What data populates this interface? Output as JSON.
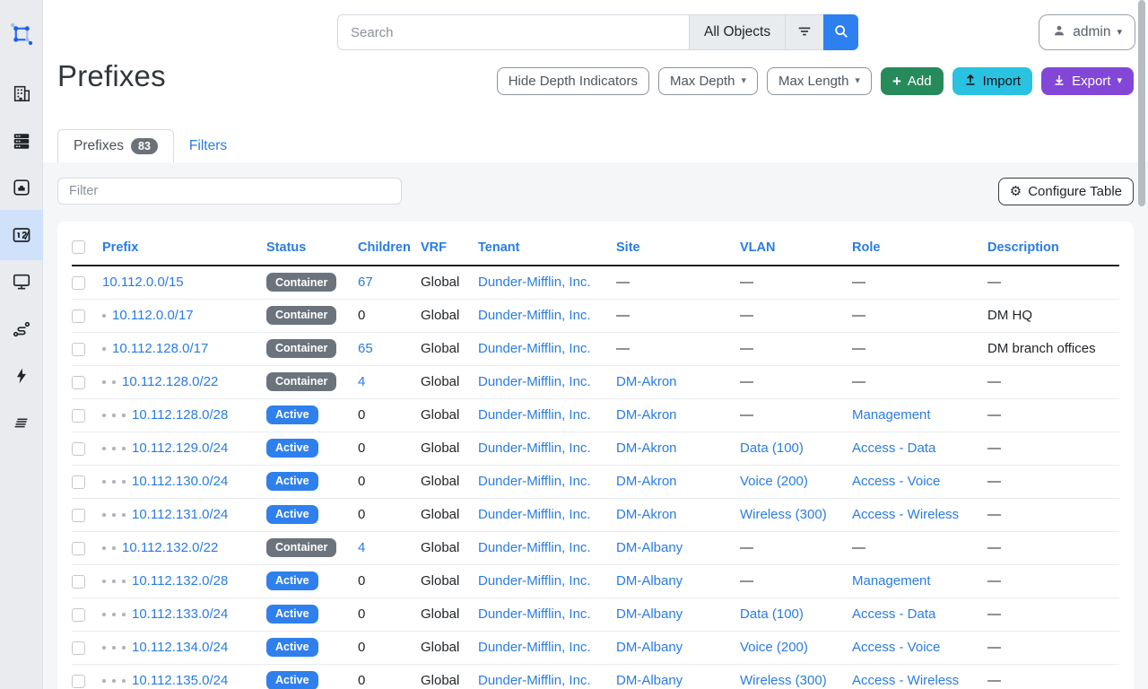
{
  "topbar": {
    "search_placeholder": "Search",
    "scope_label": "All Objects",
    "user_label": "admin"
  },
  "sidebar": {
    "items": [
      {
        "name": "netbox-logo"
      },
      {
        "name": "organization"
      },
      {
        "name": "devices"
      },
      {
        "name": "connections"
      },
      {
        "name": "ipam",
        "active": true
      },
      {
        "name": "virtualization"
      },
      {
        "name": "circuits"
      },
      {
        "name": "power"
      },
      {
        "name": "provider-networks"
      }
    ]
  },
  "page": {
    "title": "Prefixes",
    "actions": {
      "hide_depth": "Hide Depth Indicators",
      "max_depth": "Max Depth",
      "max_length": "Max Length",
      "add": "Add",
      "import": "Import",
      "export": "Export"
    },
    "tabs": [
      {
        "label": "Prefixes",
        "badge": "83"
      },
      {
        "label": "Filters"
      }
    ]
  },
  "panel": {
    "filter_placeholder": "Filter",
    "configure_label": "Configure Table"
  },
  "table": {
    "columns": [
      "Prefix",
      "Status",
      "Children",
      "VRF",
      "Tenant",
      "Site",
      "VLAN",
      "Role",
      "Description"
    ],
    "rows": [
      {
        "prefix": "10.112.0.0/15",
        "depth": 0,
        "status": "Container",
        "status_kind": "container",
        "children": "67",
        "children_link": true,
        "vrf": "Global",
        "tenant": "Dunder-Mifflin, Inc.",
        "site": "—",
        "vlan": "—",
        "role": "—",
        "description": "—"
      },
      {
        "prefix": "10.112.0.0/17",
        "depth": 1,
        "status": "Container",
        "status_kind": "container",
        "children": "0",
        "children_link": false,
        "vrf": "Global",
        "tenant": "Dunder-Mifflin, Inc.",
        "site": "—",
        "vlan": "—",
        "role": "—",
        "description": "DM HQ"
      },
      {
        "prefix": "10.112.128.0/17",
        "depth": 1,
        "status": "Container",
        "status_kind": "container",
        "children": "65",
        "children_link": true,
        "vrf": "Global",
        "tenant": "Dunder-Mifflin, Inc.",
        "site": "—",
        "vlan": "—",
        "role": "—",
        "description": "DM branch offices"
      },
      {
        "prefix": "10.112.128.0/22",
        "depth": 2,
        "status": "Container",
        "status_kind": "container",
        "children": "4",
        "children_link": true,
        "vrf": "Global",
        "tenant": "Dunder-Mifflin, Inc.",
        "site": "DM-Akron",
        "vlan": "—",
        "role": "—",
        "description": "—"
      },
      {
        "prefix": "10.112.128.0/28",
        "depth": 3,
        "status": "Active",
        "status_kind": "active",
        "children": "0",
        "children_link": false,
        "vrf": "Global",
        "tenant": "Dunder-Mifflin, Inc.",
        "site": "DM-Akron",
        "vlan": "—",
        "role": "Management",
        "description": "—"
      },
      {
        "prefix": "10.112.129.0/24",
        "depth": 3,
        "status": "Active",
        "status_kind": "active",
        "children": "0",
        "children_link": false,
        "vrf": "Global",
        "tenant": "Dunder-Mifflin, Inc.",
        "site": "DM-Akron",
        "vlan": "Data (100)",
        "role": "Access - Data",
        "description": "—"
      },
      {
        "prefix": "10.112.130.0/24",
        "depth": 3,
        "status": "Active",
        "status_kind": "active",
        "children": "0",
        "children_link": false,
        "vrf": "Global",
        "tenant": "Dunder-Mifflin, Inc.",
        "site": "DM-Akron",
        "vlan": "Voice (200)",
        "role": "Access - Voice",
        "description": "—"
      },
      {
        "prefix": "10.112.131.0/24",
        "depth": 3,
        "status": "Active",
        "status_kind": "active",
        "children": "0",
        "children_link": false,
        "vrf": "Global",
        "tenant": "Dunder-Mifflin, Inc.",
        "site": "DM-Akron",
        "vlan": "Wireless (300)",
        "role": "Access - Wireless",
        "description": "—"
      },
      {
        "prefix": "10.112.132.0/22",
        "depth": 2,
        "status": "Container",
        "status_kind": "container",
        "children": "4",
        "children_link": true,
        "vrf": "Global",
        "tenant": "Dunder-Mifflin, Inc.",
        "site": "DM-Albany",
        "vlan": "—",
        "role": "—",
        "description": "—"
      },
      {
        "prefix": "10.112.132.0/28",
        "depth": 3,
        "status": "Active",
        "status_kind": "active",
        "children": "0",
        "children_link": false,
        "vrf": "Global",
        "tenant": "Dunder-Mifflin, Inc.",
        "site": "DM-Albany",
        "vlan": "—",
        "role": "Management",
        "description": "—"
      },
      {
        "prefix": "10.112.133.0/24",
        "depth": 3,
        "status": "Active",
        "status_kind": "active",
        "children": "0",
        "children_link": false,
        "vrf": "Global",
        "tenant": "Dunder-Mifflin, Inc.",
        "site": "DM-Albany",
        "vlan": "Data (100)",
        "role": "Access - Data",
        "description": "—"
      },
      {
        "prefix": "10.112.134.0/24",
        "depth": 3,
        "status": "Active",
        "status_kind": "active",
        "children": "0",
        "children_link": false,
        "vrf": "Global",
        "tenant": "Dunder-Mifflin, Inc.",
        "site": "DM-Albany",
        "vlan": "Voice (200)",
        "role": "Access - Voice",
        "description": "—"
      },
      {
        "prefix": "10.112.135.0/24",
        "depth": 3,
        "status": "Active",
        "status_kind": "active",
        "children": "0",
        "children_link": false,
        "vrf": "Global",
        "tenant": "Dunder-Mifflin, Inc.",
        "site": "DM-Albany",
        "vlan": "Wireless (300)",
        "role": "Access - Wireless",
        "description": "—"
      }
    ]
  },
  "colors": {
    "link": "#2a7ce2",
    "active_badge": "#2f80ed",
    "container_badge": "#6b747c",
    "add_green": "#278a5b",
    "import_cyan": "#29c2e0",
    "export_purple": "#8247d6",
    "search_blue": "#2e7ff0",
    "sidebar_active": "#cfe1fb"
  }
}
